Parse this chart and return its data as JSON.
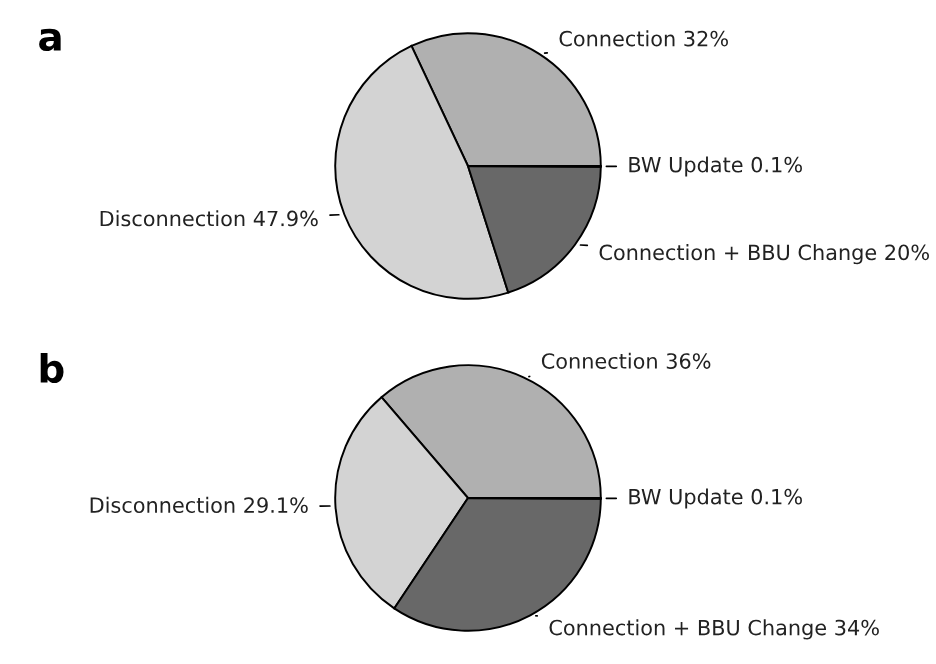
{
  "chart_data": [
    {
      "type": "pie",
      "title": "a",
      "categories": [
        "Connection",
        "Disconnection",
        "Connection + BBU Change",
        "BW Update"
      ],
      "values": [
        32,
        47.9,
        20,
        0.1
      ],
      "value_labels": [
        "32%",
        "47.9%",
        "20%",
        "0.1%"
      ],
      "colors": [
        "#b0b0b0",
        "#d3d3d3",
        "#686868",
        "#909090"
      ]
    },
    {
      "type": "pie",
      "title": "b",
      "categories": [
        "Connection",
        "Disconnection",
        "Connection + BBU Change",
        "BW Update"
      ],
      "values": [
        36,
        29.1,
        34,
        0.1
      ],
      "value_labels": [
        "36%",
        "29.1%",
        "34%",
        "0.1%"
      ],
      "colors": [
        "#b0b0b0",
        "#d3d3d3",
        "#686868",
        "#909090"
      ]
    }
  ]
}
